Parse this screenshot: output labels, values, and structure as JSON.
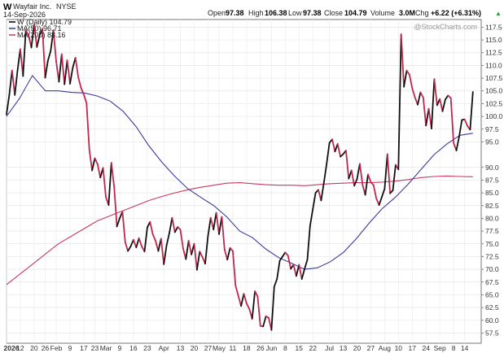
{
  "header": {
    "symbol": "W",
    "company": "Wayfair Inc.",
    "exchange": "NYSE",
    "date": "14-Sep-2026",
    "open_label": "Open",
    "open": "97.38",
    "high_label": "High",
    "high": "106.38",
    "low_label": "Low",
    "low": "97.38",
    "close_label": "Close",
    "close": "104.79",
    "volume_label": "Volume",
    "volume": "3.0M",
    "chg_label": "Chg",
    "chg": "+6.22 (+6.31%)",
    "up_arrow": "▲",
    "watermark": "@StockCharts.com"
  },
  "legend": [
    {
      "label": "W (Daily) 104.79",
      "color": "#000000"
    },
    {
      "label": "MA(50) 96.71",
      "color": "#3b3b9c"
    },
    {
      "label": "MA(200) 88.16",
      "color": "#c8385e"
    }
  ],
  "chart_data": {
    "type": "line",
    "ylim": [
      55.5,
      119
    ],
    "yticks": [
      57.5,
      60.0,
      62.5,
      65.0,
      67.5,
      70.0,
      72.5,
      75.0,
      77.5,
      80.0,
      82.5,
      85.0,
      87.5,
      90.0,
      95.0,
      97.5,
      100.0,
      102.5,
      105.0,
      107.5,
      110.0,
      112.5,
      115.0,
      117.5
    ],
    "xticks": [
      {
        "label": "2026",
        "pos": 0
      },
      {
        "label": "12",
        "pos": 5
      },
      {
        "label": "20",
        "pos": 10
      },
      {
        "label": "26",
        "pos": 14
      },
      {
        "label": "Feb",
        "pos": 18
      },
      {
        "label": "9",
        "pos": 23
      },
      {
        "label": "17",
        "pos": 28
      },
      {
        "label": "23",
        "pos": 32
      },
      {
        "label": "Mar",
        "pos": 36
      },
      {
        "label": "9",
        "pos": 41
      },
      {
        "label": "16",
        "pos": 46
      },
      {
        "label": "23",
        "pos": 51
      },
      {
        "label": "Apr",
        "pos": 57
      },
      {
        "label": "13",
        "pos": 63
      },
      {
        "label": "20",
        "pos": 68
      },
      {
        "label": "27",
        "pos": 73
      },
      {
        "label": "May",
        "pos": 77
      },
      {
        "label": "11",
        "pos": 82
      },
      {
        "label": "18",
        "pos": 87
      },
      {
        "label": "26",
        "pos": 92
      },
      {
        "label": "Jun",
        "pos": 96
      },
      {
        "label": "8",
        "pos": 101
      },
      {
        "label": "15",
        "pos": 106
      },
      {
        "label": "22",
        "pos": 111
      },
      {
        "label": "Jul",
        "pos": 117
      },
      {
        "label": "13",
        "pos": 122
      },
      {
        "label": "20",
        "pos": 127
      },
      {
        "label": "27",
        "pos": 132
      },
      {
        "label": "Aug",
        "pos": 137
      },
      {
        "label": "10",
        "pos": 142
      },
      {
        "label": "17",
        "pos": 147
      },
      {
        "label": "24",
        "pos": 152
      },
      {
        "label": "Sep",
        "pos": 157
      },
      {
        "label": "8",
        "pos": 162
      },
      {
        "label": "14",
        "pos": 166
      }
    ],
    "series": [
      {
        "name": "W (Daily)",
        "color": "#000000",
        "values": [
          100.4,
          104.2,
          109.0,
          104.2,
          109.1,
          113.2,
          107.9,
          116.9,
          115.9,
          113.5,
          118.0,
          113.6,
          115.9,
          117.2,
          107.6,
          110.9,
          112.8,
          116.9,
          110.8,
          106.8,
          112.2,
          106.3,
          111.0,
          106.4,
          109.5,
          111.5,
          107.7,
          105.6,
          104.3,
          102.6,
          93.5,
          89.4,
          91.8,
          90.6,
          88.0,
          89.9,
          84.2,
          82.6,
          90.9,
          86.2,
          78.4,
          80.0,
          81.3,
          75.3,
          73.6,
          74.5,
          75.8,
          74.3,
          76.1,
          74.5,
          73.5,
          78.2,
          79.3,
          76.9,
          75.6,
          73.6,
          76.0,
          71.0,
          74.7,
          77.1,
          80.1,
          77.3,
          78.3,
          77.8,
          74.1,
          72.0,
          75.6,
          72.9,
          75.0,
          69.9,
          73.5,
          72.4,
          71.1,
          76.5,
          80.1,
          77.8,
          81.1,
          76.9,
          80.3,
          73.9,
          71.9,
          74.2,
          73.6,
          66.8,
          64.8,
          62.8,
          65.2,
          63.3,
          62.2,
          60.3,
          65.7,
          64.7,
          58.9,
          58.8,
          60.8,
          60.5,
          58.1,
          66.6,
          68.1,
          71.7,
          72.5,
          73.3,
          72.7,
          70.1,
          70.9,
          68.7,
          70.9,
          68.1,
          70.1,
          71.9,
          78.5,
          81.8,
          85.0,
          85.6,
          83.5,
          87.0,
          90.7,
          94.8,
          95.5,
          93.1,
          94.6,
          92.1,
          92.6,
          93.3,
          87.8,
          89.4,
          86.4,
          87.7,
          90.7,
          86.6,
          84.6,
          88.6,
          87.1,
          86.5,
          83.9,
          82.6,
          84.2,
          85.8,
          92.6,
          84.9,
          85.5,
          90.5,
          89.6,
          116.1,
          105.8,
          109.0,
          108.2,
          105.5,
          103.7,
          102.3,
          104.7,
          103.7,
          98.2,
          101.5,
          97.6,
          107.3,
          102.2,
          103.4,
          101.0,
          103.3,
          104.1,
          103.6,
          94.8,
          93.3,
          96.0,
          99.3,
          99.4,
          98.1,
          97.4,
          104.8
        ]
      },
      {
        "name": "MA(50)",
        "color": "#3b3b9c",
        "values": [
          100.0,
          103.5,
          108.0,
          105.0,
          105.0,
          104.7,
          104.6,
          104.0,
          103.0,
          101.0,
          98.0,
          94.2,
          91.0,
          88.2,
          85.8,
          84.1,
          82.5,
          80.3,
          77.5,
          76.2,
          74.0,
          72.3,
          71.2,
          70.0,
          70.3,
          71.5,
          73.3,
          76.0,
          79.1,
          81.9,
          84.1,
          86.7,
          89.6,
          92.5,
          94.6,
          96.3,
          96.7
        ]
      },
      {
        "name": "MA(200)",
        "color": "#c8385e",
        "values": [
          67.0,
          69.0,
          71.0,
          73.0,
          75.0,
          76.5,
          78.0,
          79.5,
          80.5,
          81.5,
          82.5,
          83.5,
          84.3,
          85.0,
          85.6,
          86.1,
          86.5,
          86.9,
          87.0,
          86.8,
          86.6,
          86.5,
          86.5,
          86.4,
          86.6,
          86.8,
          86.9,
          87.0,
          87.0,
          87.1,
          87.3,
          87.6,
          88.0,
          88.2,
          88.3,
          88.2,
          88.16
        ]
      }
    ]
  }
}
